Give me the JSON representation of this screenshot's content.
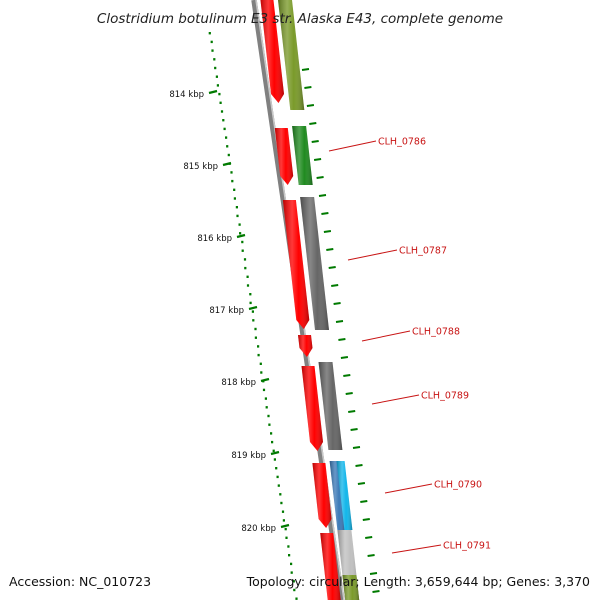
{
  "title": "Clostridium botulinum E3 str. Alaska E43, complete genome",
  "kbp_labels": [
    "814 kbp",
    "815 kbp",
    "816 kbp",
    "817 kbp",
    "818 kbp",
    "819 kbp",
    "820 kbp"
  ],
  "gene_labels": [
    "CLH_0786",
    "CLH_0787",
    "CLH_0788",
    "CLH_0789",
    "CLH_0790",
    "CLH_0791"
  ],
  "footer": {
    "accession": "Accession: NC_010723",
    "stats": "Topology: circular; Length: 3,659,644 bp; Genes: 3,370"
  },
  "colors": {
    "cds_forward": "#ff0000",
    "backbone": "#808080",
    "gc_skew": "#007a00",
    "gene_label": "#c81414",
    "cog_olive": "#7a9a2a",
    "cog_green": "#1f8a1f",
    "cog_gray": "#666666",
    "cog_blue": "#3c7ab8",
    "cog_cyan": "#12b6ea",
    "cog_light_gray": "#c0c0c0"
  }
}
